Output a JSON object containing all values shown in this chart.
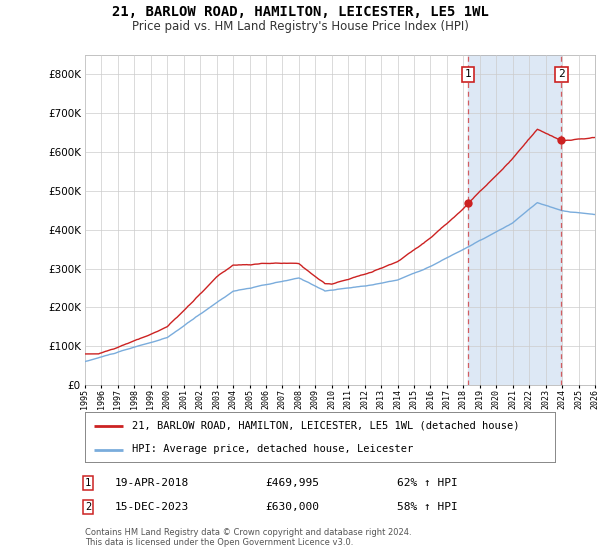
{
  "title": "21, BARLOW ROAD, HAMILTON, LEICESTER, LE5 1WL",
  "subtitle": "Price paid vs. HM Land Registry's House Price Index (HPI)",
  "hpi_label": "HPI: Average price, detached house, Leicester",
  "property_label": "21, BARLOW ROAD, HAMILTON, LEICESTER, LE5 1WL (detached house)",
  "sale1_label": "19-APR-2018",
  "sale1_price": "£469,995",
  "sale1_hpi": "62% ↑ HPI",
  "sale2_label": "15-DEC-2023",
  "sale2_price": "£630,000",
  "sale2_hpi": "58% ↑ HPI",
  "footnote": "Contains HM Land Registry data © Crown copyright and database right 2024.\nThis data is licensed under the Open Government Licence v3.0.",
  "hpi_color": "#7aacdc",
  "property_color": "#cc2222",
  "sale_marker_color": "#cc2222",
  "background_plot": "#ffffff",
  "background_fig": "#ffffff",
  "grid_color": "#cccccc",
  "highlight_color": "#dde8f5",
  "ylim": [
    0,
    850000
  ],
  "yticks": [
    0,
    100000,
    200000,
    300000,
    400000,
    500000,
    600000,
    700000,
    800000
  ],
  "x_start_year": 1995,
  "x_end_year": 2026,
  "sale1_year_float": 2018.292,
  "sale2_year_float": 2023.958,
  "sale1_price_val": 469995,
  "sale2_price_val": 630000
}
